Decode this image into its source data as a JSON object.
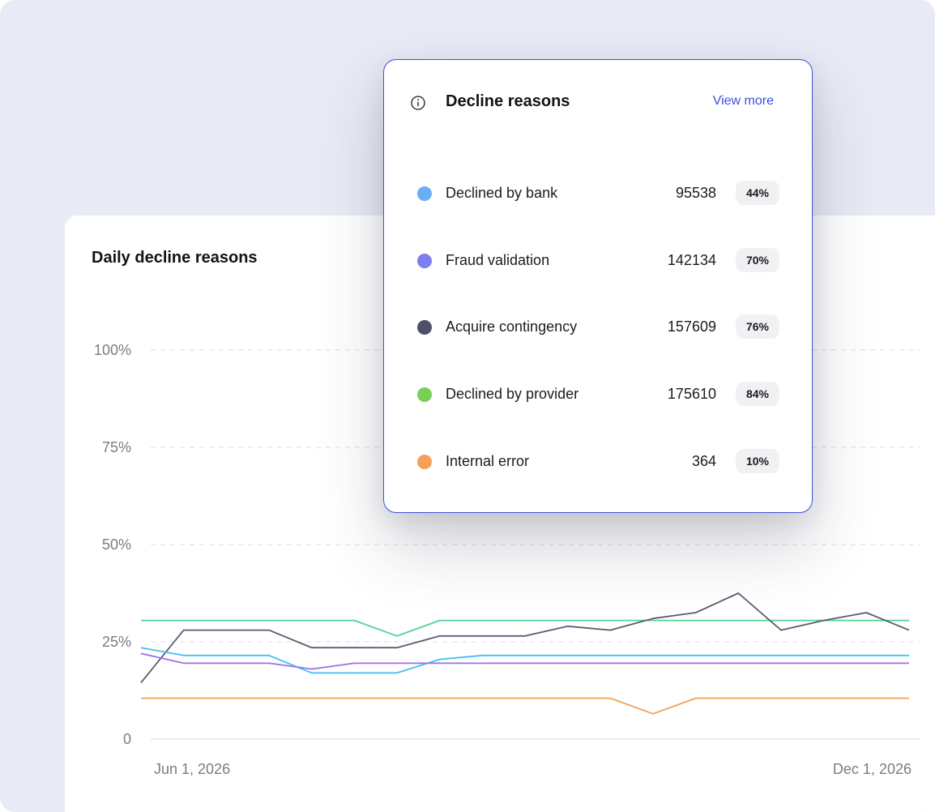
{
  "chart_card": {
    "title": "Daily decline reasons"
  },
  "popover": {
    "title": "Decline reasons",
    "view_more": "View more",
    "items": [
      {
        "label": "Declined by bank",
        "count": "95538",
        "pct": "44%",
        "color": "#6aaef5"
      },
      {
        "label": "Fraud validation",
        "count": "142134",
        "pct": "70%",
        "color": "#7b7ff0"
      },
      {
        "label": "Acquire contingency",
        "count": "157609",
        "pct": "76%",
        "color": "#4f5066"
      },
      {
        "label": "Declined by provider",
        "count": "175610",
        "pct": "84%",
        "color": "#79cf55"
      },
      {
        "label": "Internal error",
        "count": "364",
        "pct": "10%",
        "color": "#f4a05a"
      }
    ]
  },
  "chart_data": {
    "type": "line",
    "title": "Daily decline reasons",
    "xlabel": "",
    "ylabel": "",
    "y_ticks": [
      "0",
      "25%",
      "50%",
      "75%",
      "100%"
    ],
    "ylim": [
      0,
      100
    ],
    "x_tick_labels": [
      "Jun 1, 2026",
      "Dec 1, 2026"
    ],
    "x": [
      0,
      1,
      2,
      3,
      4,
      5,
      6,
      7,
      8,
      9,
      10,
      11,
      12,
      13,
      14,
      15,
      16,
      17,
      18
    ],
    "grid": true,
    "series": [
      {
        "color": "#4fd497",
        "values": [
          30.5,
          30.5,
          30.5,
          30.5,
          30.5,
          30.5,
          26.5,
          30.5,
          30.5,
          30.5,
          30.5,
          30.5,
          30.5,
          30.5,
          30.5,
          30.5,
          30.5,
          30.5,
          30.5
        ]
      },
      {
        "color": "#5b5c72",
        "values": [
          14.5,
          28,
          28,
          28,
          23.5,
          23.5,
          23.5,
          26.5,
          26.5,
          26.5,
          29,
          28,
          31,
          32.5,
          37.5,
          28,
          30.5,
          32.5,
          28
        ]
      },
      {
        "color": "#3cc0f0",
        "values": [
          23.5,
          21.5,
          21.5,
          21.5,
          17,
          17,
          17,
          20.5,
          21.5,
          21.5,
          21.5,
          21.5,
          21.5,
          21.5,
          21.5,
          21.5,
          21.5,
          21.5,
          21.5
        ]
      },
      {
        "color": "#9b6fe6",
        "values": [
          22,
          19.5,
          19.5,
          19.5,
          18,
          19.5,
          19.5,
          19.5,
          19.5,
          19.5,
          19.5,
          19.5,
          19.5,
          19.5,
          19.5,
          19.5,
          19.5,
          19.5,
          19.5
        ]
      },
      {
        "color": "#f4a05a",
        "values": [
          10.5,
          10.5,
          10.5,
          10.5,
          10.5,
          10.5,
          10.5,
          10.5,
          10.5,
          10.5,
          10.5,
          10.5,
          6.5,
          10.5,
          10.5,
          10.5,
          10.5,
          10.5,
          10.5
        ]
      }
    ]
  }
}
